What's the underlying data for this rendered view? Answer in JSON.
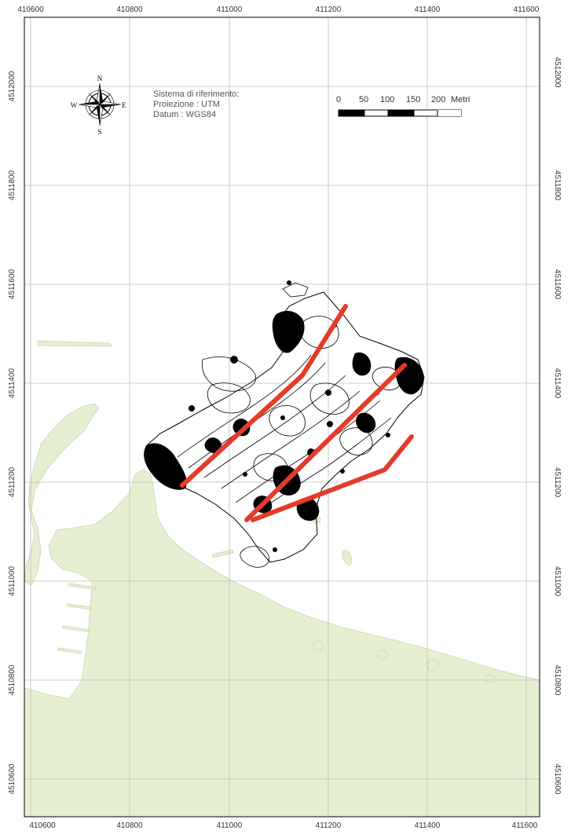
{
  "map": {
    "x_ticks": [
      "410600",
      "410800",
      "411000",
      "411200",
      "411400",
      "411600"
    ],
    "y_ticks": [
      "4512000",
      "4511800",
      "4511600",
      "4511400",
      "4511200",
      "4511000",
      "4510800",
      "4510600"
    ],
    "compass": {
      "n": "N",
      "s": "S",
      "e": "E",
      "w": "W"
    },
    "info": {
      "line1": "Sistema di riferimento:",
      "line2": "Proiezione : UTM",
      "line3": "Datum : WGS84"
    },
    "scale": {
      "labels": [
        "0",
        "50",
        "100",
        "150",
        "200"
      ],
      "unit": "Metri"
    },
    "colors": {
      "land": "#e6efd2",
      "land_outline": "#c8d8a8",
      "grid": "#bdbdbd",
      "contour": "#000000",
      "profile": "#e53b2a"
    }
  }
}
